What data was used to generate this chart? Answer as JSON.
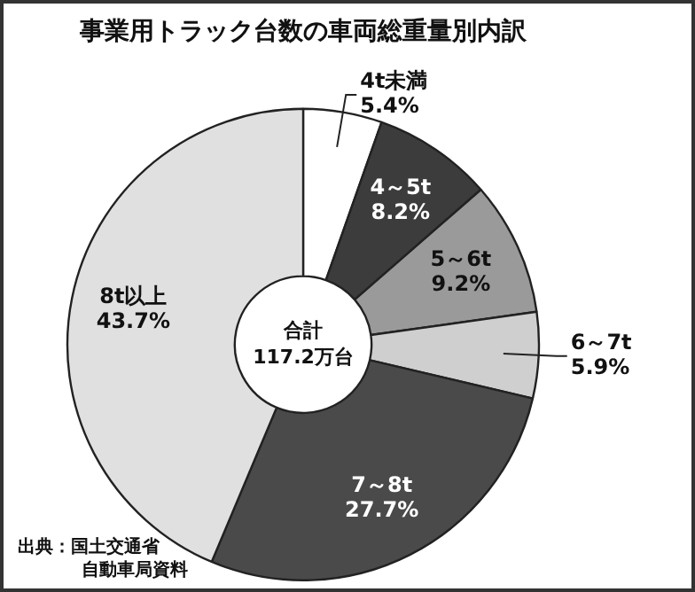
{
  "chart_data": {
    "type": "donut",
    "title": "事業用トラック台数の車両総重量別内訳",
    "categories": [
      "4t未満",
      "4～5t",
      "5～6t",
      "6～7t",
      "7～8t",
      "8t以上"
    ],
    "values": [
      5.4,
      8.2,
      9.2,
      5.9,
      27.7,
      43.7
    ],
    "colors": [
      "#ffffff",
      "#3c3c3c",
      "#9a9a9a",
      "#cfcfcf",
      "#4a4a4a",
      "#e0e0e0"
    ],
    "value_labels": [
      "5.4%",
      "8.2%",
      "9.2%",
      "5.9%",
      "27.7%",
      "43.7%"
    ],
    "annotations": [
      "合計\n117.2万台",
      "出典：国土交通省",
      "自動車局資料"
    ],
    "legend": false
  }
}
